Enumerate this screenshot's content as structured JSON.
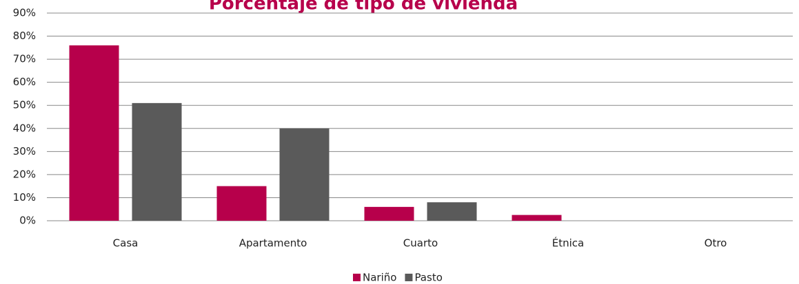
{
  "chart_data": {
    "type": "bar",
    "title": "Porcentaje de tipo de vivienda",
    "categories": [
      "Casa",
      "Apartamento",
      "Cuarto",
      "Étnica",
      "Otro"
    ],
    "series": [
      {
        "name": "Nariño",
        "color": "#b7004b",
        "values": [
          76,
          15,
          6,
          2.5,
          0
        ]
      },
      {
        "name": "Pasto",
        "color": "#5a5a5a",
        "values": [
          51,
          40,
          8,
          0,
          0
        ]
      }
    ],
    "ylim": [
      0,
      90
    ],
    "yticks": [
      {
        "value": 0,
        "label": "0%"
      },
      {
        "value": 10,
        "label": "10%"
      },
      {
        "value": 20,
        "label": "20%"
      },
      {
        "value": 30,
        "label": "30%"
      },
      {
        "value": 40,
        "label": "40%"
      },
      {
        "value": 50,
        "label": "50%"
      },
      {
        "value": 60,
        "label": "60%"
      },
      {
        "value": 70,
        "label": "70%"
      },
      {
        "value": 80,
        "label": "80%"
      },
      {
        "value": 90,
        "label": "90%"
      }
    ],
    "grid": true,
    "legend": "bottom"
  }
}
